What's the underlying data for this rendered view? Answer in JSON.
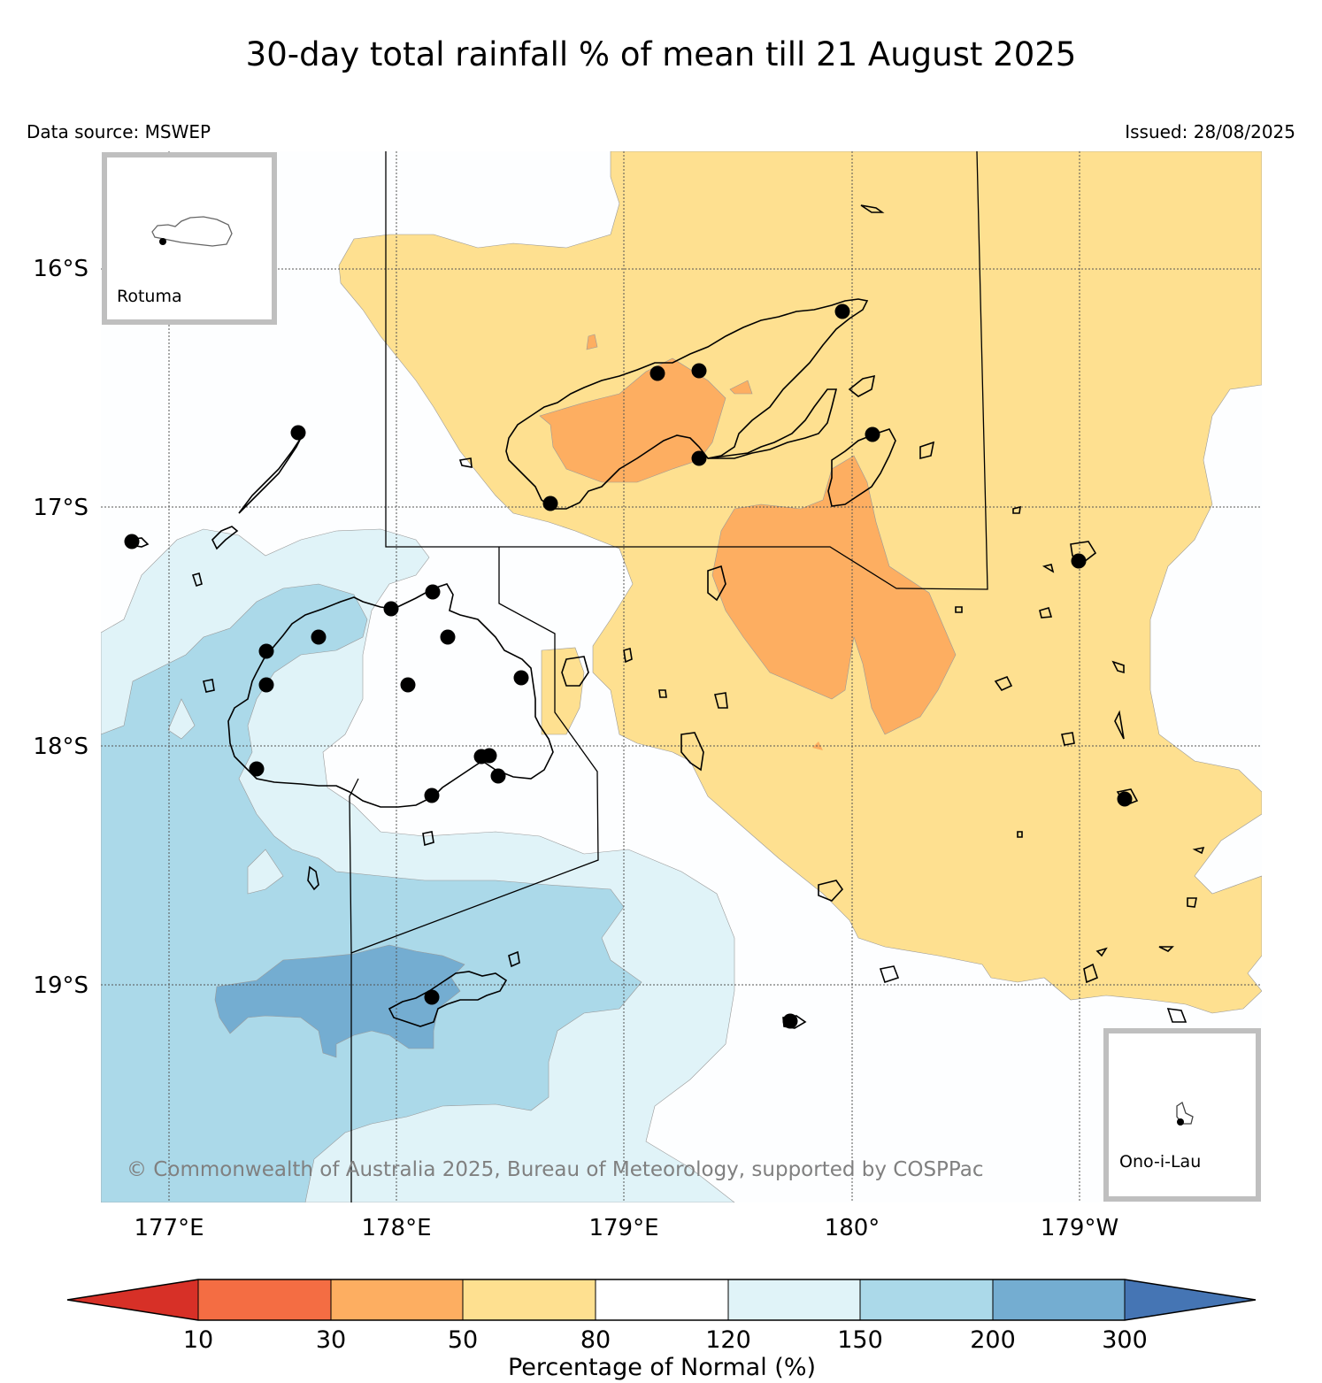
{
  "title": "30-day total rainfall % of mean till 21 August 2025",
  "data_source": "Data source: MSWEP",
  "issued": "Issued: 28/08/2025",
  "copyright": "© Commonwealth of Australia 2025, Bureau of Meteorology, supported by COSPPac",
  "latitude_labels": [
    "16°S",
    "17°S",
    "18°S",
    "19°S"
  ],
  "longitude_labels": [
    "177°E",
    "178°E",
    "179°E",
    "180°",
    "179°W"
  ],
  "insets": {
    "top_left": "Rotuma",
    "bottom_right": "Ono-i-Lau"
  },
  "colorbar": {
    "title": "Percentage of Normal (%)",
    "ticks": [
      "10",
      "30",
      "50",
      "80",
      "120",
      "150",
      "200",
      "300"
    ],
    "colors": {
      "below_10": "#d73027",
      "10_30": "#f46d43",
      "30_50": "#fdae61",
      "50_80": "#fee090",
      "80_120": "#ffffff",
      "120_150": "#e0f3f8",
      "150_200": "#abd9e9",
      "200_300": "#74add1",
      "above_300": "#4575b4"
    }
  },
  "legend_colors": {
    "ocean_background": "#fdfeff",
    "coastline": "#000000",
    "station_marker": "#000000",
    "inset_frame": "#bfbfbf"
  }
}
